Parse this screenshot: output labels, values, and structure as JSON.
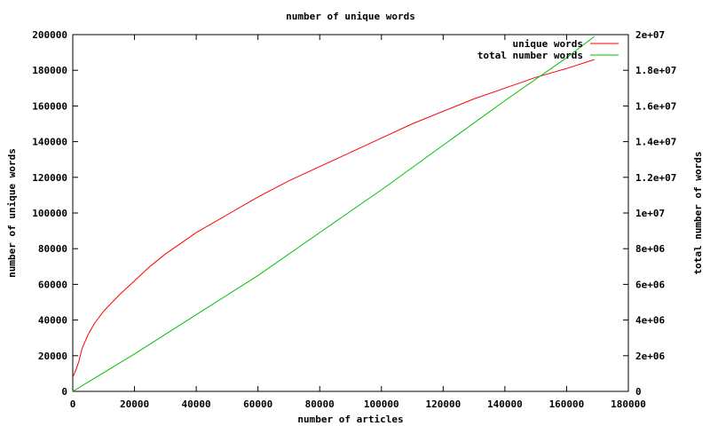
{
  "chart_data": {
    "type": "line",
    "title": "number of unique words",
    "xlabel": "number of articles",
    "ylabel": "number of unique words",
    "y2label": "total number of words",
    "xlim": [
      0,
      180000
    ],
    "ylim": [
      0,
      200000
    ],
    "y2lim": [
      0,
      20000000
    ],
    "xticks": [
      "0",
      "20000",
      "40000",
      "60000",
      "80000",
      "100000",
      "120000",
      "140000",
      "160000",
      "180000"
    ],
    "yticks": [
      "0",
      "20000",
      "40000",
      "60000",
      "80000",
      "100000",
      "120000",
      "140000",
      "160000",
      "180000",
      "200000"
    ],
    "y2ticks": [
      "0",
      "2e+06",
      "4e+06",
      "6e+06",
      "8e+06",
      "1e+07",
      "1.2e+07",
      "1.4e+07",
      "1.6e+07",
      "1.8e+07",
      "2e+07"
    ],
    "grid": false,
    "legend_position": "top-right",
    "series": [
      {
        "name": "unique words",
        "axis": "left",
        "color": "#ff0000",
        "x": [
          0,
          1000,
          2000,
          3000,
          5000,
          7000,
          10000,
          15000,
          20000,
          25000,
          30000,
          35000,
          40000,
          50000,
          60000,
          70000,
          80000,
          90000,
          100000,
          110000,
          120000,
          130000,
          140000,
          150000,
          160000,
          169000
        ],
        "y": [
          8000,
          12000,
          17000,
          24000,
          32000,
          38000,
          45000,
          54000,
          62000,
          70000,
          77000,
          83000,
          89000,
          99000,
          109000,
          118000,
          126000,
          134000,
          142000,
          150000,
          157000,
          164000,
          170000,
          176000,
          181000,
          186000
        ]
      },
      {
        "name": "total number words",
        "axis": "right",
        "color": "#00c000",
        "x": [
          0,
          20000,
          40000,
          60000,
          80000,
          100000,
          120000,
          140000,
          160000,
          169000
        ],
        "y": [
          0,
          2100000,
          4300000,
          6500000,
          8900000,
          11300000,
          13800000,
          16300000,
          18700000,
          19900000
        ]
      }
    ]
  }
}
